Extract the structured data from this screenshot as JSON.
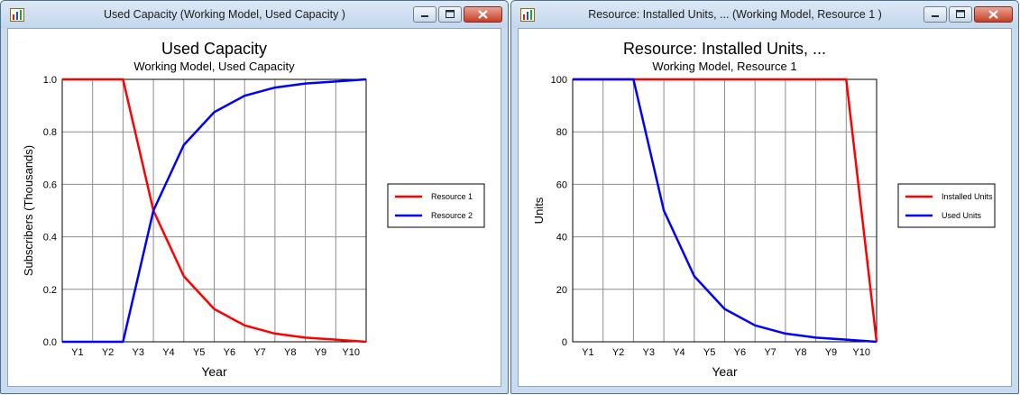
{
  "windows": [
    {
      "title": "Used Capacity (Working Model, Used Capacity )",
      "colors": {
        "frame": "#c9dcef",
        "close": "#c63f28"
      }
    },
    {
      "title": "Resource: Installed Units, ... (Working Model, Resource 1 )",
      "colors": {
        "frame": "#c9dcef",
        "close": "#c63f28"
      }
    }
  ],
  "chart_data": [
    {
      "type": "line",
      "title": "Used Capacity",
      "subtitle": "Working Model, Used Capacity",
      "xlabel": "Year",
      "ylabel": "Subscribers  (Thousands)",
      "categories": [
        "Y1",
        "Y2",
        "Y3",
        "Y4",
        "Y5",
        "Y6",
        "Y7",
        "Y8",
        "Y9",
        "Y10"
      ],
      "x": [
        0,
        1,
        2,
        3,
        4,
        5,
        6,
        7,
        8,
        9,
        10
      ],
      "ylim": [
        0,
        1.0
      ],
      "yticks": [
        "0.0",
        "0.2",
        "0.4",
        "0.6",
        "0.8",
        "1.0"
      ],
      "grid": true,
      "legend_position": "right",
      "series": [
        {
          "name": "Resource 1",
          "color": "#ff0000",
          "values": [
            1,
            1,
            1,
            0.5,
            0.25,
            0.125,
            0.0625,
            0.03125,
            0.016,
            0.008,
            0
          ]
        },
        {
          "name": "Resource 2",
          "color": "#0000ff",
          "values": [
            0,
            0,
            0,
            0.5,
            0.75,
            0.875,
            0.9375,
            0.96875,
            0.984,
            0.992,
            1
          ]
        }
      ]
    },
    {
      "type": "line",
      "title": "Resource: Installed Units, ...",
      "subtitle": "Working Model, Resource 1",
      "xlabel": "Year",
      "ylabel": "Units",
      "categories": [
        "Y1",
        "Y2",
        "Y3",
        "Y4",
        "Y5",
        "Y6",
        "Y7",
        "Y8",
        "Y9",
        "Y10"
      ],
      "x": [
        0,
        1,
        2,
        3,
        4,
        5,
        6,
        7,
        8,
        9,
        10
      ],
      "ylim": [
        0,
        100
      ],
      "yticks": [
        "0",
        "20",
        "40",
        "60",
        "80",
        "100"
      ],
      "grid": true,
      "legend_position": "right",
      "series": [
        {
          "name": "Installed Units",
          "color": "#ff0000",
          "values": [
            100,
            100,
            100,
            100,
            100,
            100,
            100,
            100,
            100,
            100,
            0
          ]
        },
        {
          "name": "Used Units",
          "color": "#0000ff",
          "values": [
            100,
            100,
            100,
            50,
            25,
            12.5,
            6.25,
            3.125,
            1.6,
            0.8,
            0
          ]
        }
      ]
    }
  ]
}
